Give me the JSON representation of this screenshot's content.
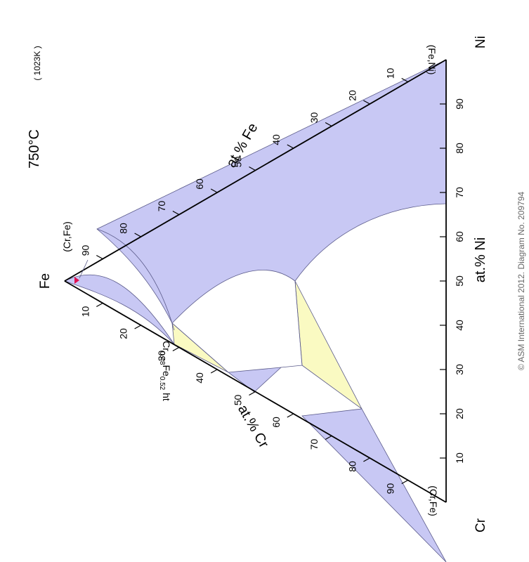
{
  "title": "750°C",
  "temperature_k": "( 1023K )",
  "vertices": {
    "fe": "Fe",
    "cr": "Cr",
    "ni": "Ni"
  },
  "axes": {
    "fe": "at.% Fe",
    "cr": "at.% Cr",
    "ni": "at.% Ni"
  },
  "ticks": {
    "ni": [
      "10",
      "20",
      "30",
      "40",
      "50",
      "60",
      "70",
      "80",
      "90"
    ],
    "fe": [
      "10",
      "20",
      "30",
      "40",
      "50",
      "60",
      "70",
      "80",
      "90"
    ],
    "cr": [
      "10",
      "20",
      "30",
      "40",
      "50",
      "60",
      "70",
      "80",
      "90"
    ]
  },
  "phase_labels": {
    "fe_corner": "(Cr,Fe)",
    "fe_ni": "(Fe,Ni)",
    "cr_fe": "(Cr,Fe)",
    "sigma": "Cr",
    "sigma_sub1": "0.48",
    "sigma_mid": "Fe",
    "sigma_sub2": "0.52",
    "sigma_suffix": " ht"
  },
  "credit": "© ASM International 2012.       Diagram No. 209794",
  "colors": {
    "single_phase": "#c8c8f4",
    "three_phase": "#fafac2",
    "marker": "#e01050"
  }
}
